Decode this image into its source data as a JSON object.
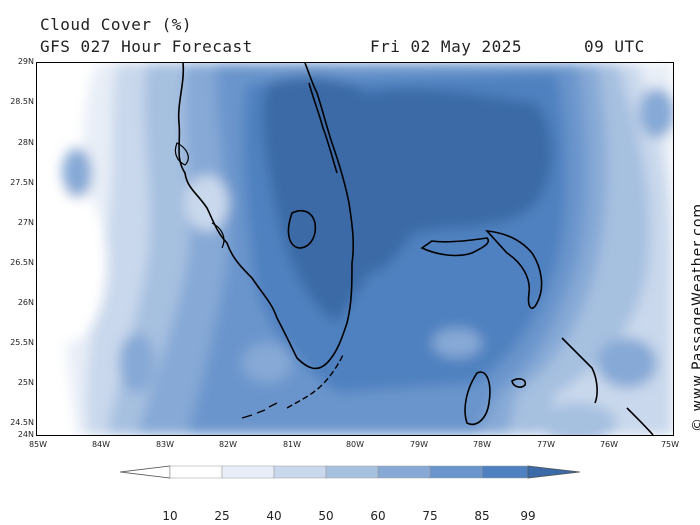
{
  "header": {
    "title": "Cloud Cover (%)",
    "subtitle": "GFS 027 Hour Forecast",
    "date": "Fri 02 May 2025",
    "time": "09 UTC"
  },
  "watermark": "© www.PassageWeather.com",
  "lat_labels": [
    "29N",
    "28.5N",
    "28N",
    "27.5N",
    "27N",
    "26.5N",
    "26N",
    "25.5N",
    "25N",
    "24.5N",
    "24N"
  ],
  "lon_labels": [
    "85W",
    "84W",
    "83W",
    "82W",
    "81W",
    "80W",
    "79W",
    "78W",
    "77W",
    "76W",
    "75W"
  ],
  "colorbar": {
    "labels": [
      "10",
      "25",
      "40",
      "50",
      "60",
      "75",
      "85",
      "99"
    ],
    "colors": [
      "#ffffff",
      "#e8eef7",
      "#c9d8ec",
      "#a6c0e0",
      "#86a9d6",
      "#6a95cc",
      "#4f81c0",
      "#3a6aa8"
    ]
  },
  "colors": {
    "coast": "#000000",
    "land_cloud": "#4f7fba",
    "deep_cloud": "#3a6aa6"
  }
}
